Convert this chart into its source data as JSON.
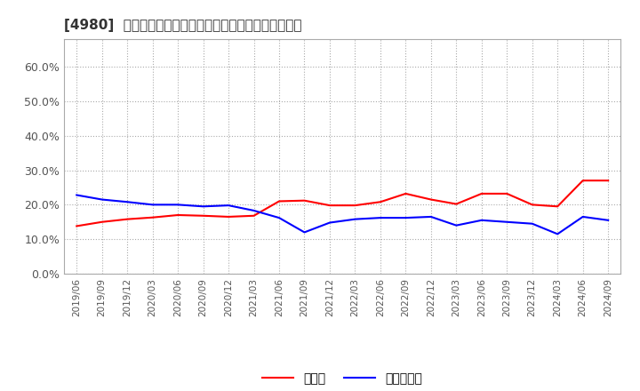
{
  "title": "[4980]  現預金、有利子負債の総資産に対する比率の推移",
  "legend_cash": "現預金",
  "legend_debt": "有利子負債",
  "cash_color": "#ff0000",
  "debt_color": "#0000ff",
  "background_color": "#ffffff",
  "plot_bg_color": "#ffffff",
  "ylim": [
    0.0,
    0.68
  ],
  "yticks": [
    0.0,
    0.1,
    0.2,
    0.3,
    0.4,
    0.5,
    0.6
  ],
  "ytick_labels": [
    "0.0%",
    "10.0%",
    "20.0%",
    "30.0%",
    "40.0%",
    "50.0%",
    "60.0%"
  ],
  "x_labels": [
    "2019/06",
    "2019/09",
    "2019/12",
    "2020/03",
    "2020/06",
    "2020/09",
    "2020/12",
    "2021/03",
    "2021/06",
    "2021/09",
    "2021/12",
    "2022/03",
    "2022/06",
    "2022/09",
    "2022/12",
    "2023/03",
    "2023/06",
    "2023/09",
    "2023/12",
    "2024/03",
    "2024/06",
    "2024/09"
  ],
  "cash": [
    0.138,
    0.15,
    0.158,
    0.163,
    0.17,
    0.168,
    0.165,
    0.168,
    0.21,
    0.212,
    0.198,
    0.198,
    0.208,
    0.232,
    0.215,
    0.202,
    0.232,
    0.232,
    0.2,
    0.195,
    0.27,
    0.27
  ],
  "debt": [
    0.228,
    0.215,
    0.208,
    0.2,
    0.2,
    0.195,
    0.198,
    0.183,
    0.162,
    0.12,
    0.148,
    0.158,
    0.162,
    0.162,
    0.165,
    0.14,
    0.155,
    0.15,
    0.145,
    0.115,
    0.165,
    0.155
  ]
}
